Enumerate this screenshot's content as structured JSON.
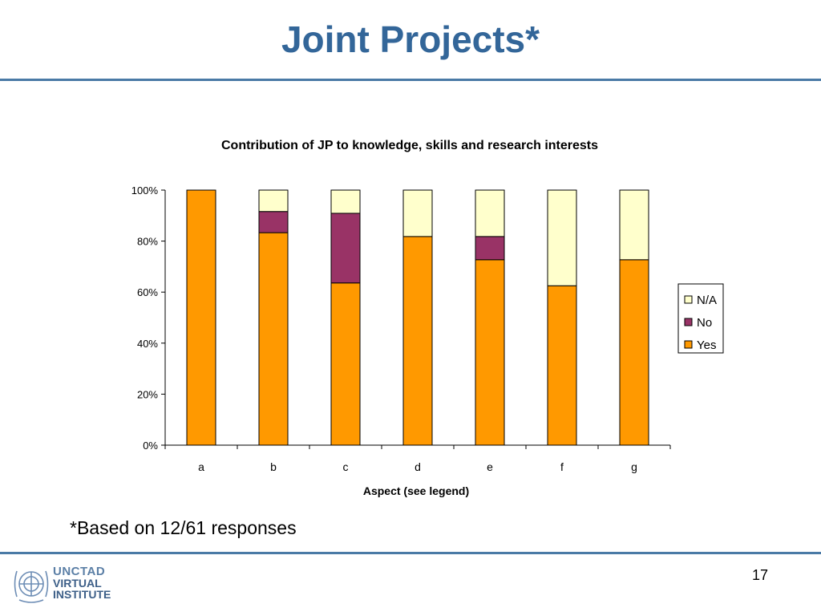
{
  "slide": {
    "title": "Joint Projects*",
    "footnote": "*Based on 12/61 responses",
    "page_number": "17"
  },
  "logo": {
    "line1": "UNCTAD",
    "line2": "VIRTUAL",
    "line3": "INSTITUTE",
    "emblem_icon": "un-emblem-icon"
  },
  "colors": {
    "yes": "#ff9900",
    "no": "#993366",
    "na": "#ffffcc",
    "accent": "#336699"
  },
  "chart_data": {
    "type": "bar",
    "stacked": true,
    "title": "Contribution of JP to knowledge, skills and research interests",
    "xlabel": "Aspect (see legend)",
    "ylabel": "",
    "categories": [
      "a",
      "b",
      "c",
      "d",
      "e",
      "f",
      "g"
    ],
    "yticks": [
      "0%",
      "20%",
      "40%",
      "60%",
      "80%",
      "100%"
    ],
    "ylim": [
      0,
      100
    ],
    "legend_position": "right",
    "legend_order": [
      "N/A",
      "No",
      "Yes"
    ],
    "series": [
      {
        "name": "Yes",
        "color": "#ff9900",
        "values": [
          100,
          83.3,
          63.6,
          81.8,
          72.7,
          62.5,
          72.7
        ]
      },
      {
        "name": "No",
        "color": "#993366",
        "values": [
          0,
          8.3,
          27.3,
          0,
          9.1,
          0,
          0
        ]
      },
      {
        "name": "N/A",
        "color": "#ffffcc",
        "values": [
          0,
          8.4,
          9.1,
          18.2,
          18.2,
          37.5,
          27.3
        ]
      }
    ]
  }
}
